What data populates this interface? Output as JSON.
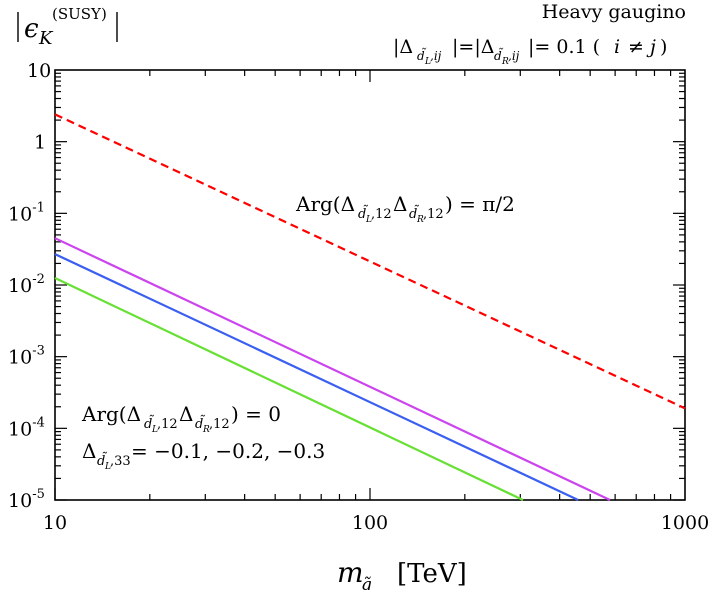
{
  "chart_data": {
    "type": "line",
    "title_left": "|ε_K^(SUSY)|",
    "title_right": [
      "Heavy gaugino",
      "|Δ_{d̃L,ij}|=|Δ_{d̃R,ij}|= 0.1  (i ≠ j)"
    ],
    "xlabel": "m_q̃  [TeV]",
    "xscale": "log",
    "yscale": "log",
    "xlim": [
      10,
      1000
    ],
    "ylim": [
      1e-05,
      10
    ],
    "x_ticks": [
      10,
      100,
      1000
    ],
    "x_tick_labels": [
      "10",
      "100",
      "1000"
    ],
    "y_ticks": [
      1e-05,
      0.0001,
      0.001,
      0.01,
      0.1,
      1,
      10
    ],
    "y_tick_labels": [
      {
        "base": "10",
        "exp": "-5"
      },
      {
        "base": "10",
        "exp": "-4"
      },
      {
        "base": "10",
        "exp": "-3"
      },
      {
        "base": "10",
        "exp": "-2"
      },
      {
        "base": "10",
        "exp": "-1"
      },
      {
        "base": "1",
        "exp": ""
      },
      {
        "base": "10",
        "exp": ""
      }
    ],
    "series": [
      {
        "name": "Arg = π/2",
        "color": "#ff0000",
        "style": "dashed",
        "x": [
          10,
          1000
        ],
        "y": [
          2.4,
          0.00019
        ]
      },
      {
        "name": "Δ_{d̃L,33} = -0.3",
        "color": "#cc44ee",
        "style": "solid",
        "x": [
          10,
          578
        ],
        "y": [
          0.045,
          1e-05
        ]
      },
      {
        "name": "Δ_{d̃L,33} = -0.2",
        "color": "#3b5ff0",
        "style": "solid",
        "x": [
          10,
          458
        ],
        "y": [
          0.027,
          1e-05
        ]
      },
      {
        "name": "Δ_{d̃L,33} = -0.1",
        "color": "#66e033",
        "style": "solid",
        "x": [
          10,
          306
        ],
        "y": [
          0.0125,
          1e-05
        ]
      }
    ],
    "annotations": {
      "upper": {
        "prefix": "Arg(",
        "suffix": ") = π/2"
      },
      "lower": {
        "prefix": "Arg(",
        "suffix": ") = 0",
        "values": "= −0.1, −0.2, −0.3"
      }
    }
  }
}
